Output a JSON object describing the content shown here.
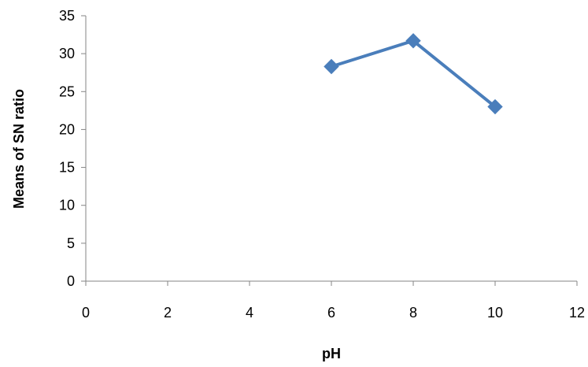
{
  "chart_data": {
    "type": "line",
    "title": "",
    "xlabel": "pH",
    "ylabel": "Means of SN ratio",
    "xlim": [
      0,
      12
    ],
    "ylim": [
      0,
      35
    ],
    "x_ticks": [
      0,
      2,
      4,
      6,
      8,
      10,
      12
    ],
    "y_ticks": [
      0,
      5,
      10,
      15,
      20,
      25,
      30,
      35
    ],
    "grid": false,
    "legend": "none",
    "series": [
      {
        "color": "#4a7ebb",
        "marker": "diamond",
        "x": [
          6,
          8,
          10
        ],
        "y": [
          28.3,
          31.7,
          23.0
        ]
      }
    ]
  }
}
